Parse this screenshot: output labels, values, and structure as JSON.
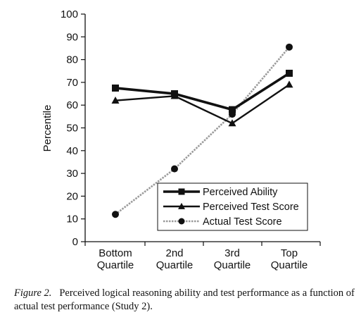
{
  "chart_data": {
    "type": "line",
    "categories": [
      [
        "Bottom",
        "Quartile"
      ],
      [
        "2nd",
        "Quartile"
      ],
      [
        "3rd",
        "Quartile"
      ],
      [
        "Top",
        "Quartile"
      ]
    ],
    "ylabel": "Percentile",
    "ylim": [
      0,
      100
    ],
    "yticks": [
      0,
      10,
      20,
      30,
      40,
      50,
      60,
      70,
      80,
      90,
      100
    ],
    "legend_position": "bottom-right",
    "series": [
      {
        "name": "Perceived Ability",
        "values": [
          67.5,
          65,
          58,
          74
        ],
        "marker": "square",
        "color": "#111111",
        "style": "solid-thick"
      },
      {
        "name": "Perceived Test Score",
        "values": [
          62,
          64,
          52,
          69
        ],
        "marker": "triangle",
        "color": "#111111",
        "style": "solid"
      },
      {
        "name": "Actual Test Score",
        "values": [
          12,
          32,
          56,
          85.5
        ],
        "marker": "circle",
        "color": "#9a9a9a",
        "style": "dotted"
      }
    ]
  },
  "caption": {
    "label": "Figure 2.",
    "text": "Perceived logical reasoning ability and test performance as a function of actual test performance (Study 2)."
  }
}
